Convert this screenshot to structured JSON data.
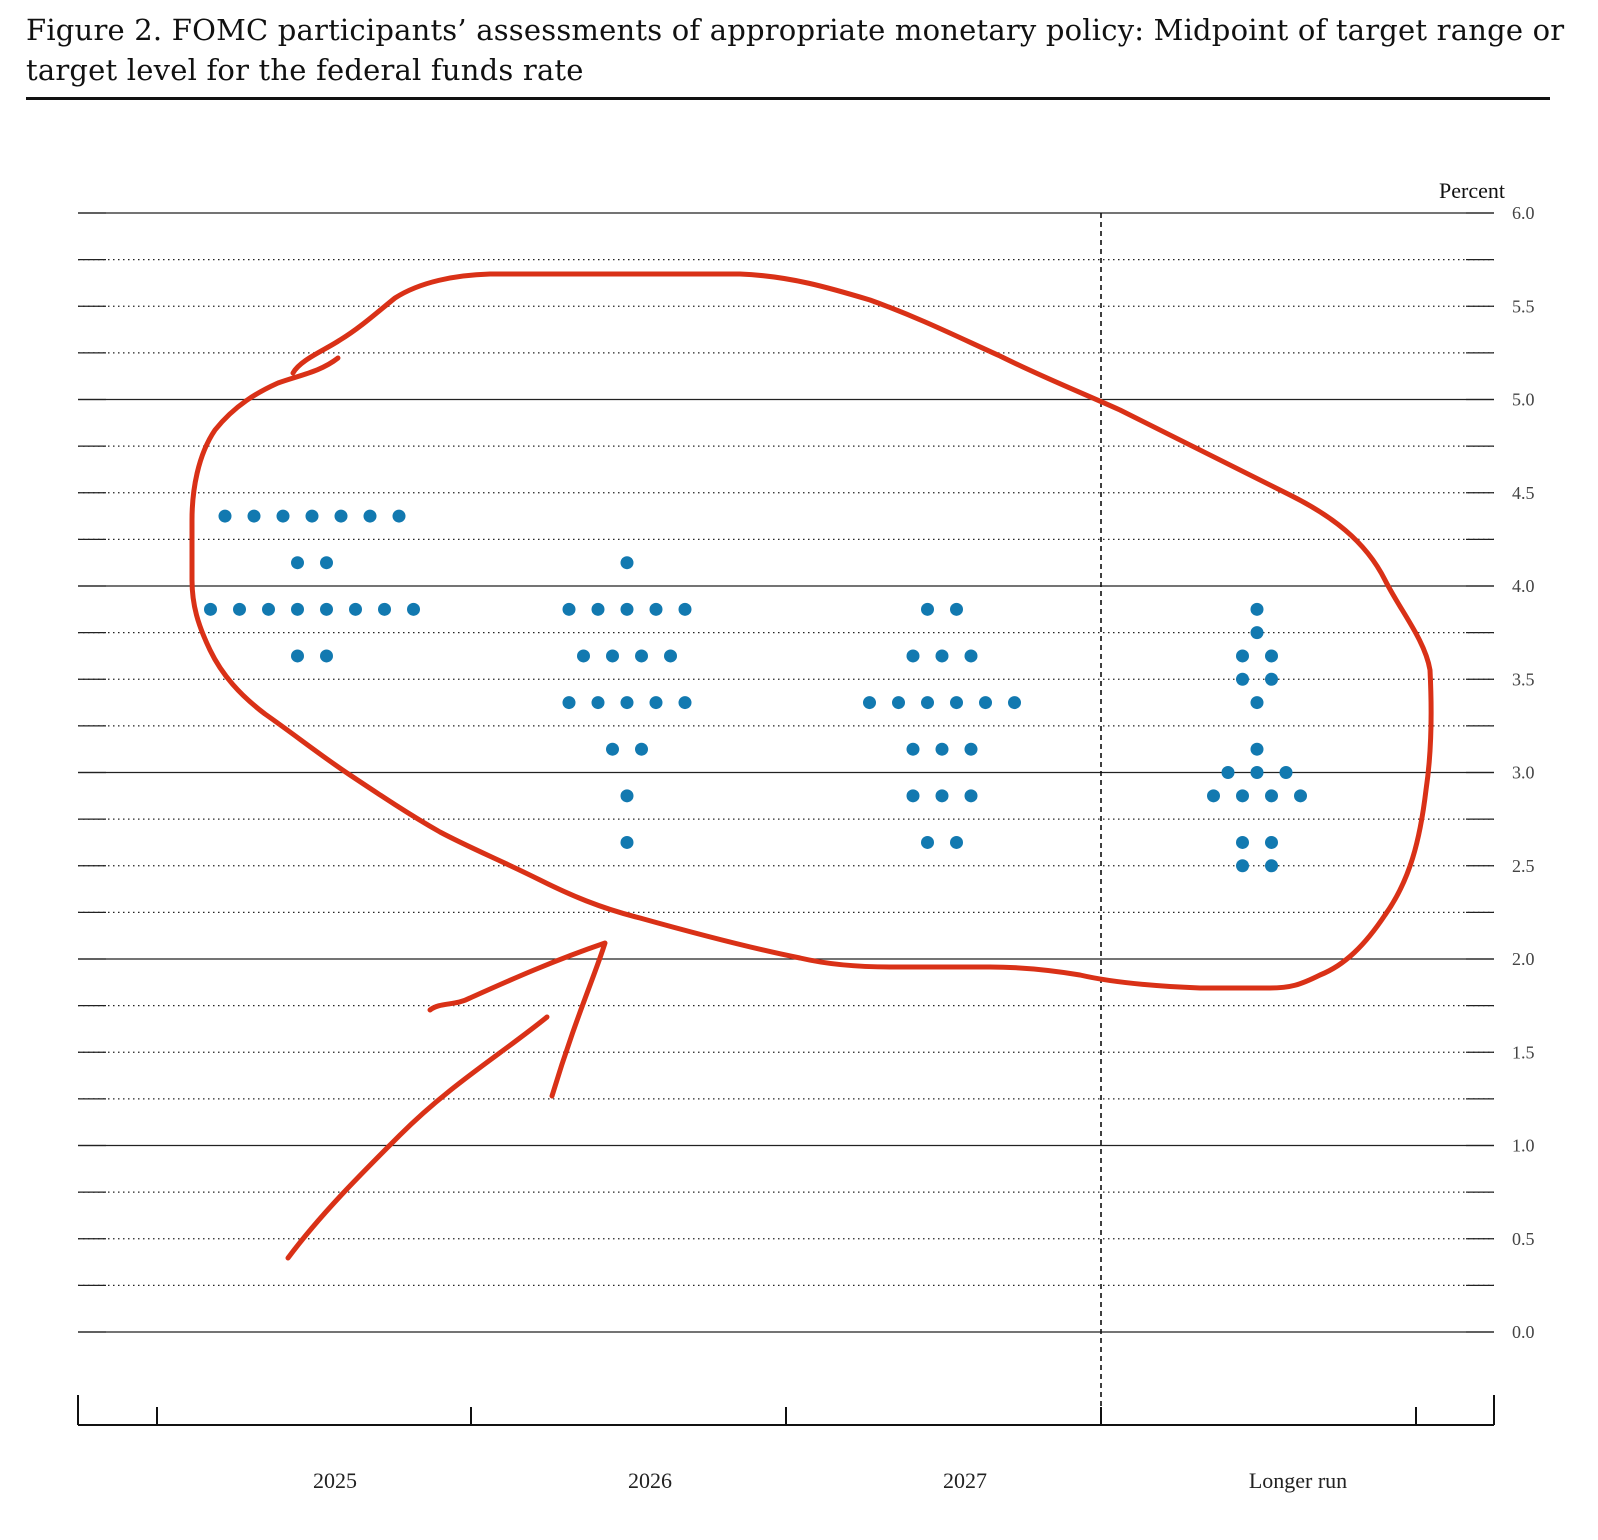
{
  "figure": {
    "title": "Figure 2.  FOMC participants’ assessments of appropriate monetary policy:  Midpoint of target range or target level for the federal funds rate"
  },
  "chart_data": {
    "type": "scatter",
    "title": "Figure 2.  FOMC participants’ assessments of appropriate monetary policy:  Midpoint of target range or target level for the federal funds rate",
    "xlabel": "",
    "ylabel": "Percent",
    "ylim": [
      0.0,
      6.0
    ],
    "y_ticks": [
      "0.0",
      "0.5",
      "1.0",
      "1.5",
      "2.0",
      "2.5",
      "3.0",
      "3.5",
      "4.0",
      "4.5",
      "5.0",
      "5.5",
      "6.0"
    ],
    "categories": [
      "2025",
      "2026",
      "2027",
      "Longer run"
    ],
    "grid": true,
    "dot_color": "#1279b0",
    "annotation_color": "#d93117",
    "columns": [
      {
        "category": "2025",
        "groups": [
          {
            "value": 4.375,
            "count": 7
          },
          {
            "value": 4.125,
            "count": 2
          },
          {
            "value": 3.875,
            "count": 8
          },
          {
            "value": 3.625,
            "count": 2
          }
        ]
      },
      {
        "category": "2026",
        "groups": [
          {
            "value": 4.125,
            "count": 1
          },
          {
            "value": 3.875,
            "count": 5
          },
          {
            "value": 3.625,
            "count": 4
          },
          {
            "value": 3.375,
            "count": 5
          },
          {
            "value": 3.125,
            "count": 2
          },
          {
            "value": 2.875,
            "count": 1
          },
          {
            "value": 2.625,
            "count": 1
          }
        ]
      },
      {
        "category": "2027",
        "groups": [
          {
            "value": 3.875,
            "count": 2
          },
          {
            "value": 3.625,
            "count": 3
          },
          {
            "value": 3.375,
            "count": 6
          },
          {
            "value": 3.125,
            "count": 3
          },
          {
            "value": 2.875,
            "count": 3
          },
          {
            "value": 2.625,
            "count": 2
          }
        ]
      },
      {
        "category": "Longer run",
        "groups": [
          {
            "value": 3.875,
            "count": 1
          },
          {
            "value": 3.75,
            "count": 1
          },
          {
            "value": 3.625,
            "count": 2
          },
          {
            "value": 3.5,
            "count": 2
          },
          {
            "value": 3.375,
            "count": 1
          },
          {
            "value": 3.125,
            "count": 1
          },
          {
            "value": 3.0,
            "count": 3
          },
          {
            "value": 2.875,
            "count": 4
          },
          {
            "value": 2.625,
            "count": 2
          },
          {
            "value": 2.5,
            "count": 2
          }
        ]
      }
    ]
  }
}
